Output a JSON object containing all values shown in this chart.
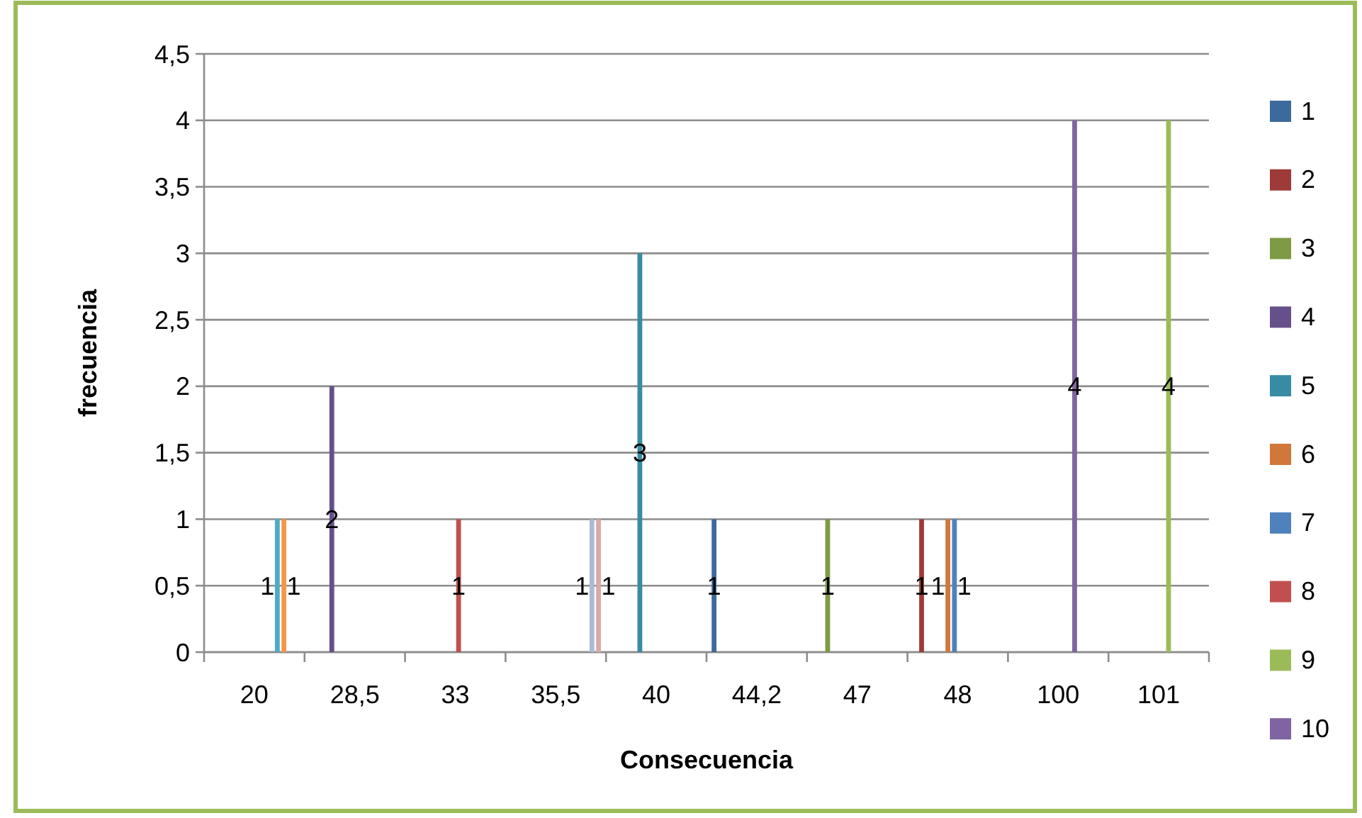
{
  "chart_data": {
    "type": "bar",
    "xlabel": "Consecuencia",
    "ylabel": "frecuencia",
    "categories": [
      "20",
      "28,5",
      "33",
      "35,5",
      "40",
      "44,2",
      "47",
      "48",
      "100",
      "101"
    ],
    "ylim": [
      0,
      4.5
    ],
    "yticks": [
      {
        "value": 0,
        "label": "0"
      },
      {
        "value": 0.5,
        "label": "0,5"
      },
      {
        "value": 1,
        "label": "1"
      },
      {
        "value": 1.5,
        "label": "1,5"
      },
      {
        "value": 2,
        "label": "2"
      },
      {
        "value": 2.5,
        "label": "2,5"
      },
      {
        "value": 3,
        "label": "3"
      },
      {
        "value": 3.5,
        "label": "3,5"
      },
      {
        "value": 4,
        "label": "4"
      },
      {
        "value": 4.5,
        "label": "4,5"
      }
    ],
    "grid": "y",
    "legend": "right",
    "data_labels": true,
    "series": [
      {
        "name": "1",
        "color": "#3d6a9c",
        "values": [
          null,
          null,
          null,
          null,
          null,
          1,
          null,
          null,
          null,
          null
        ]
      },
      {
        "name": "2",
        "color": "#9e3b38",
        "values": [
          null,
          null,
          null,
          null,
          null,
          null,
          null,
          1,
          null,
          null
        ]
      },
      {
        "name": "3",
        "color": "#7e9a44",
        "values": [
          null,
          null,
          null,
          null,
          null,
          null,
          1,
          null,
          null,
          null
        ]
      },
      {
        "name": "4",
        "color": "#66508a",
        "values": [
          null,
          2,
          null,
          null,
          null,
          null,
          null,
          null,
          null,
          null
        ]
      },
      {
        "name": "5",
        "color": "#378ca3",
        "values": [
          null,
          null,
          null,
          null,
          3,
          null,
          null,
          null,
          null,
          null
        ]
      },
      {
        "name": "6",
        "color": "#d0783a",
        "values": [
          null,
          null,
          null,
          null,
          null,
          null,
          null,
          1,
          null,
          null
        ]
      },
      {
        "name": "7",
        "color": "#4f81bd",
        "values": [
          null,
          null,
          null,
          null,
          null,
          null,
          null,
          1,
          null,
          null
        ]
      },
      {
        "name": "8",
        "color": "#c0504d",
        "values": [
          null,
          null,
          1,
          null,
          null,
          null,
          null,
          null,
          null,
          null
        ]
      },
      {
        "name": "9",
        "color": "#9bbb59",
        "values": [
          null,
          null,
          null,
          null,
          null,
          null,
          null,
          null,
          null,
          4
        ]
      },
      {
        "name": "10",
        "color": "#8064a2",
        "values": [
          null,
          null,
          null,
          null,
          null,
          null,
          null,
          null,
          4,
          null
        ]
      },
      {
        "color": "#4bacc6",
        "values": [
          1,
          null,
          null,
          null,
          null,
          null,
          null,
          null,
          null,
          null
        ]
      },
      {
        "color": "#f79646",
        "values": [
          1,
          null,
          null,
          null,
          null,
          null,
          null,
          null,
          null,
          null
        ]
      },
      {
        "color": "#aabad7",
        "values": [
          null,
          null,
          null,
          1,
          null,
          null,
          null,
          null,
          null,
          null
        ]
      },
      {
        "color": "#d9aaa9",
        "values": [
          null,
          null,
          null,
          1,
          null,
          null,
          null,
          null,
          null,
          null
        ]
      }
    ]
  }
}
